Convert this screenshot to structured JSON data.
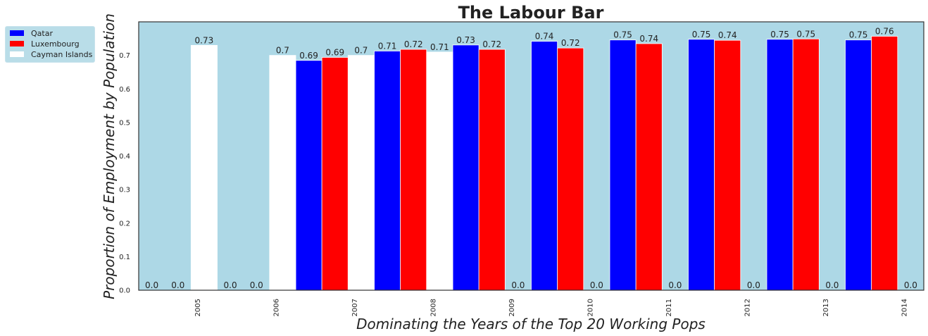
{
  "chart_data": {
    "type": "bar",
    "title": "The Labour Bar",
    "xlabel": "Dominating the Years of the Top 20 Working Pops",
    "ylabel": "Proportion of Employment by Population",
    "categories": [
      "2005",
      "2006",
      "2007",
      "2008",
      "2009",
      "2010",
      "2011",
      "2012",
      "2013",
      "2014"
    ],
    "ylim": [
      0,
      0.8
    ],
    "yticks": [
      "0.0",
      "0.1",
      "0.2",
      "0.3",
      "0.4",
      "0.5",
      "0.6",
      "0.7"
    ],
    "background": "#add8e6",
    "legend_position": "outside-top-left",
    "series": [
      {
        "name": "Qatar",
        "color": "#0000ff",
        "values": [
          0.0,
          0.0,
          0.685,
          0.713,
          0.731,
          0.742,
          0.746,
          0.748,
          0.748,
          0.746
        ],
        "labels": [
          "0.0",
          "0.0",
          "0.69",
          "0.71",
          "0.73",
          "0.74",
          "0.75",
          "0.75",
          "0.75",
          "0.75"
        ]
      },
      {
        "name": "Luxembourg",
        "color": "#ff0000",
        "values": [
          0.0,
          0.0,
          0.694,
          0.718,
          0.718,
          0.722,
          0.735,
          0.745,
          0.749,
          0.757
        ],
        "labels": [
          "0.0",
          "0.0",
          "0.69",
          "0.72",
          "0.72",
          "0.72",
          "0.74",
          "0.74",
          "0.75",
          "0.76"
        ]
      },
      {
        "name": "Cayman Islands",
        "color": "#ffffff",
        "values": [
          0.73,
          0.7,
          0.7,
          0.71,
          0.0,
          0.0,
          0.0,
          0.0,
          0.0,
          0.0
        ],
        "labels": [
          "0.73",
          "0.7",
          "0.7",
          "0.71",
          "0.0",
          "0.0",
          "0.0",
          "0.0",
          "0.0",
          "0.0"
        ]
      }
    ]
  }
}
